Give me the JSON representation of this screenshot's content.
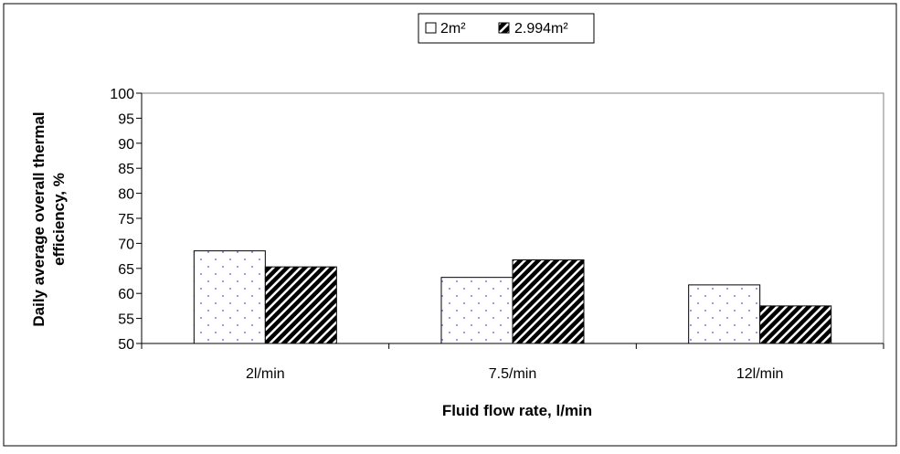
{
  "chart_data": {
    "type": "bar",
    "title": "",
    "xlabel": "Fluid flow rate, l/min",
    "ylabel": "Daily average overall thermal efficiency, %",
    "ylabel_lines": [
      "Daily average overall thermal",
      "efficiency, %"
    ],
    "categories": [
      "2l/min",
      "7.5/min",
      "12l/min"
    ],
    "series": [
      {
        "name": "2m²",
        "values": [
          68.5,
          63.2,
          61.7
        ],
        "pattern": "dots",
        "color": "#9999ff"
      },
      {
        "name": "2.994m²",
        "values": [
          65.3,
          66.7,
          57.5
        ],
        "pattern": "diagonal",
        "color": "#000000"
      }
    ],
    "ylim": [
      50,
      100
    ],
    "yticks": [
      50,
      55,
      60,
      65,
      70,
      75,
      80,
      85,
      90,
      95,
      100
    ],
    "grid": false,
    "legend": "top-center"
  }
}
